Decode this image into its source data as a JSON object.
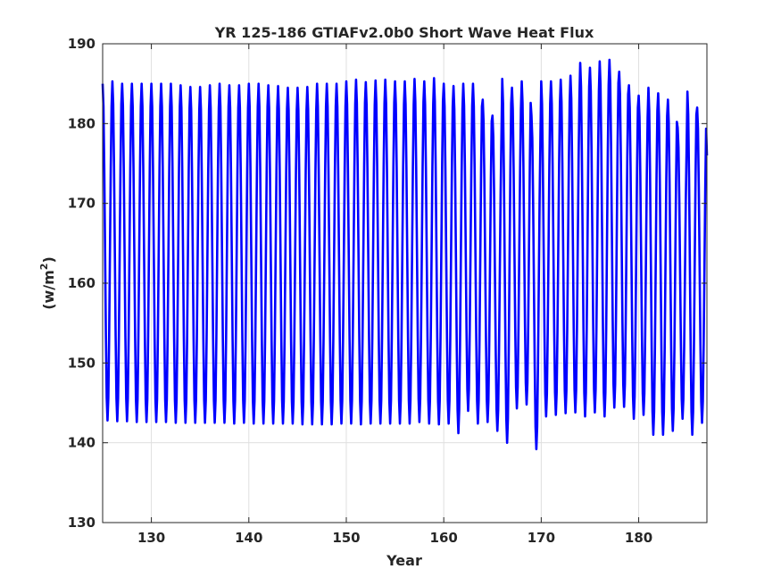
{
  "chart_data": {
    "type": "line",
    "title": "YR 125-186 GTIAFv2.0b0 Short Wave Heat Flux",
    "xlabel": "Year",
    "ylabel": "(w/m",
    "ylabel_superscript": "2",
    "ylabel_close": ")",
    "xlim": [
      125,
      187
    ],
    "ylim": [
      130,
      190
    ],
    "xticks": [
      130,
      140,
      150,
      160,
      170,
      180
    ],
    "yticks": [
      130,
      140,
      150,
      160,
      170,
      180,
      190
    ],
    "grid": true,
    "series_color": "#0000ff",
    "series": [
      {
        "x": [
          125,
          126,
          127,
          128,
          129,
          130,
          131,
          132,
          133,
          134,
          135,
          136,
          137,
          138,
          139,
          140,
          141,
          142,
          143,
          144,
          145,
          146,
          147,
          148,
          149,
          150,
          151,
          152,
          153,
          154,
          155,
          156,
          157,
          158,
          159,
          160,
          161,
          162,
          163,
          164,
          165,
          166,
          167,
          168,
          169,
          170,
          171,
          172,
          173,
          174,
          175,
          176,
          177,
          178,
          179,
          180,
          181,
          182,
          183,
          184,
          185,
          186
        ],
        "annual_max": [
          185,
          185.3,
          185,
          185,
          185,
          185,
          185,
          185,
          184.8,
          184.6,
          184.6,
          184.8,
          185,
          184.8,
          184.8,
          185,
          185,
          184.8,
          184.7,
          184.5,
          184.5,
          184.6,
          185,
          185,
          185,
          185.3,
          185.5,
          185.2,
          185.4,
          185.5,
          185.3,
          185.3,
          185.6,
          185.3,
          185.7,
          185,
          184.7,
          185,
          185,
          183,
          181,
          185.6,
          184.5,
          185.3,
          181,
          185.3,
          185.3,
          185.5,
          186,
          187.6,
          187,
          187.8,
          188,
          186.5,
          184.8,
          183.5,
          184.5,
          183.8,
          183,
          179.5,
          184,
          182
        ],
        "annual_min": [
          142.8,
          142.7,
          142.7,
          142.6,
          142.6,
          142.6,
          142.6,
          142.5,
          142.5,
          142.5,
          142.5,
          142.5,
          142.5,
          142.4,
          142.5,
          142.4,
          142.4,
          142.4,
          142.4,
          142.4,
          142.3,
          142.3,
          142.3,
          142.3,
          142.4,
          142.4,
          142.3,
          142.4,
          142.4,
          142.4,
          142.4,
          142.4,
          142.6,
          142.4,
          142.3,
          142.4,
          141.2,
          144,
          142.4,
          142.6,
          141.5,
          140,
          144.3,
          144.8,
          139.2,
          143.3,
          143.5,
          143.7,
          143.8,
          143.3,
          143.8,
          143.3,
          144.4,
          144.5,
          143,
          143.5,
          141,
          141,
          141.5,
          143,
          141,
          142.5
        ]
      }
    ]
  }
}
